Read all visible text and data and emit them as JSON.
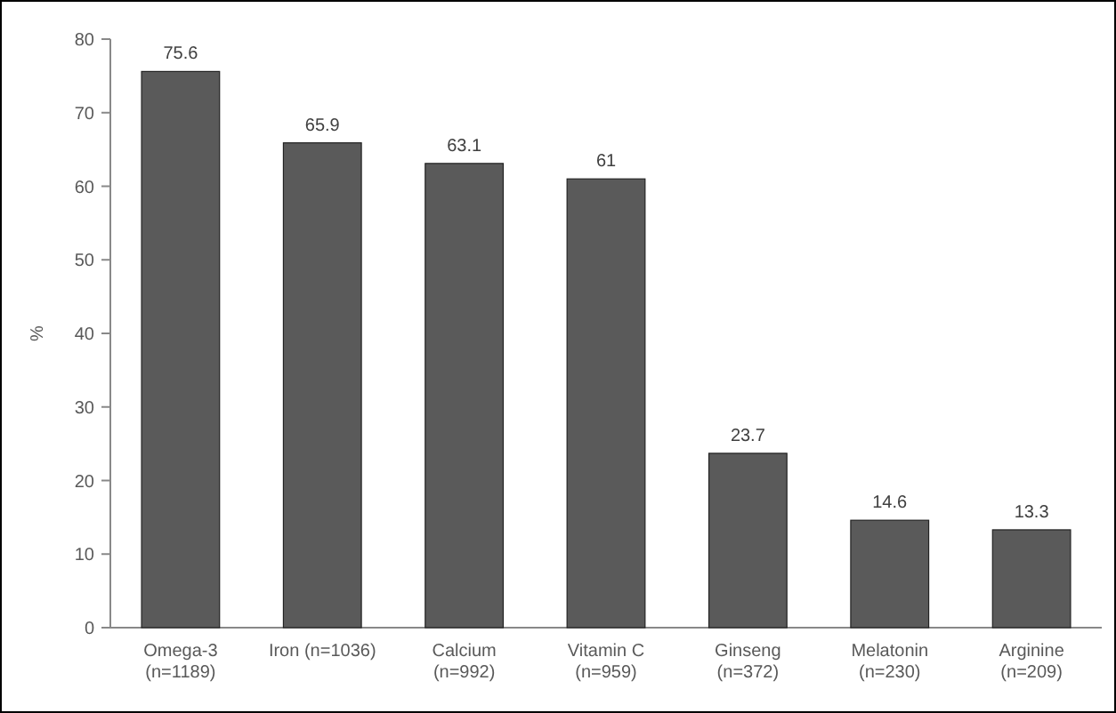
{
  "chart_data": {
    "type": "bar",
    "ylabel": "%",
    "categories": [
      "Omega-3 (n=1189)",
      "Iron (n=1036)",
      "Calcium (n=992)",
      "Vitamin C (n=959)",
      "Ginseng (n=372)",
      "Melatonin (n=230)",
      "Arginine (n=209)"
    ],
    "values": [
      75.6,
      65.9,
      63.1,
      61,
      23.7,
      14.6,
      13.3
    ],
    "color": "#5a5a5a",
    "ylim": [
      0,
      80
    ],
    "yticks": [
      0,
      10,
      20,
      30,
      40,
      50,
      60,
      70,
      80
    ],
    "grid": false,
    "data_labels": true
  }
}
